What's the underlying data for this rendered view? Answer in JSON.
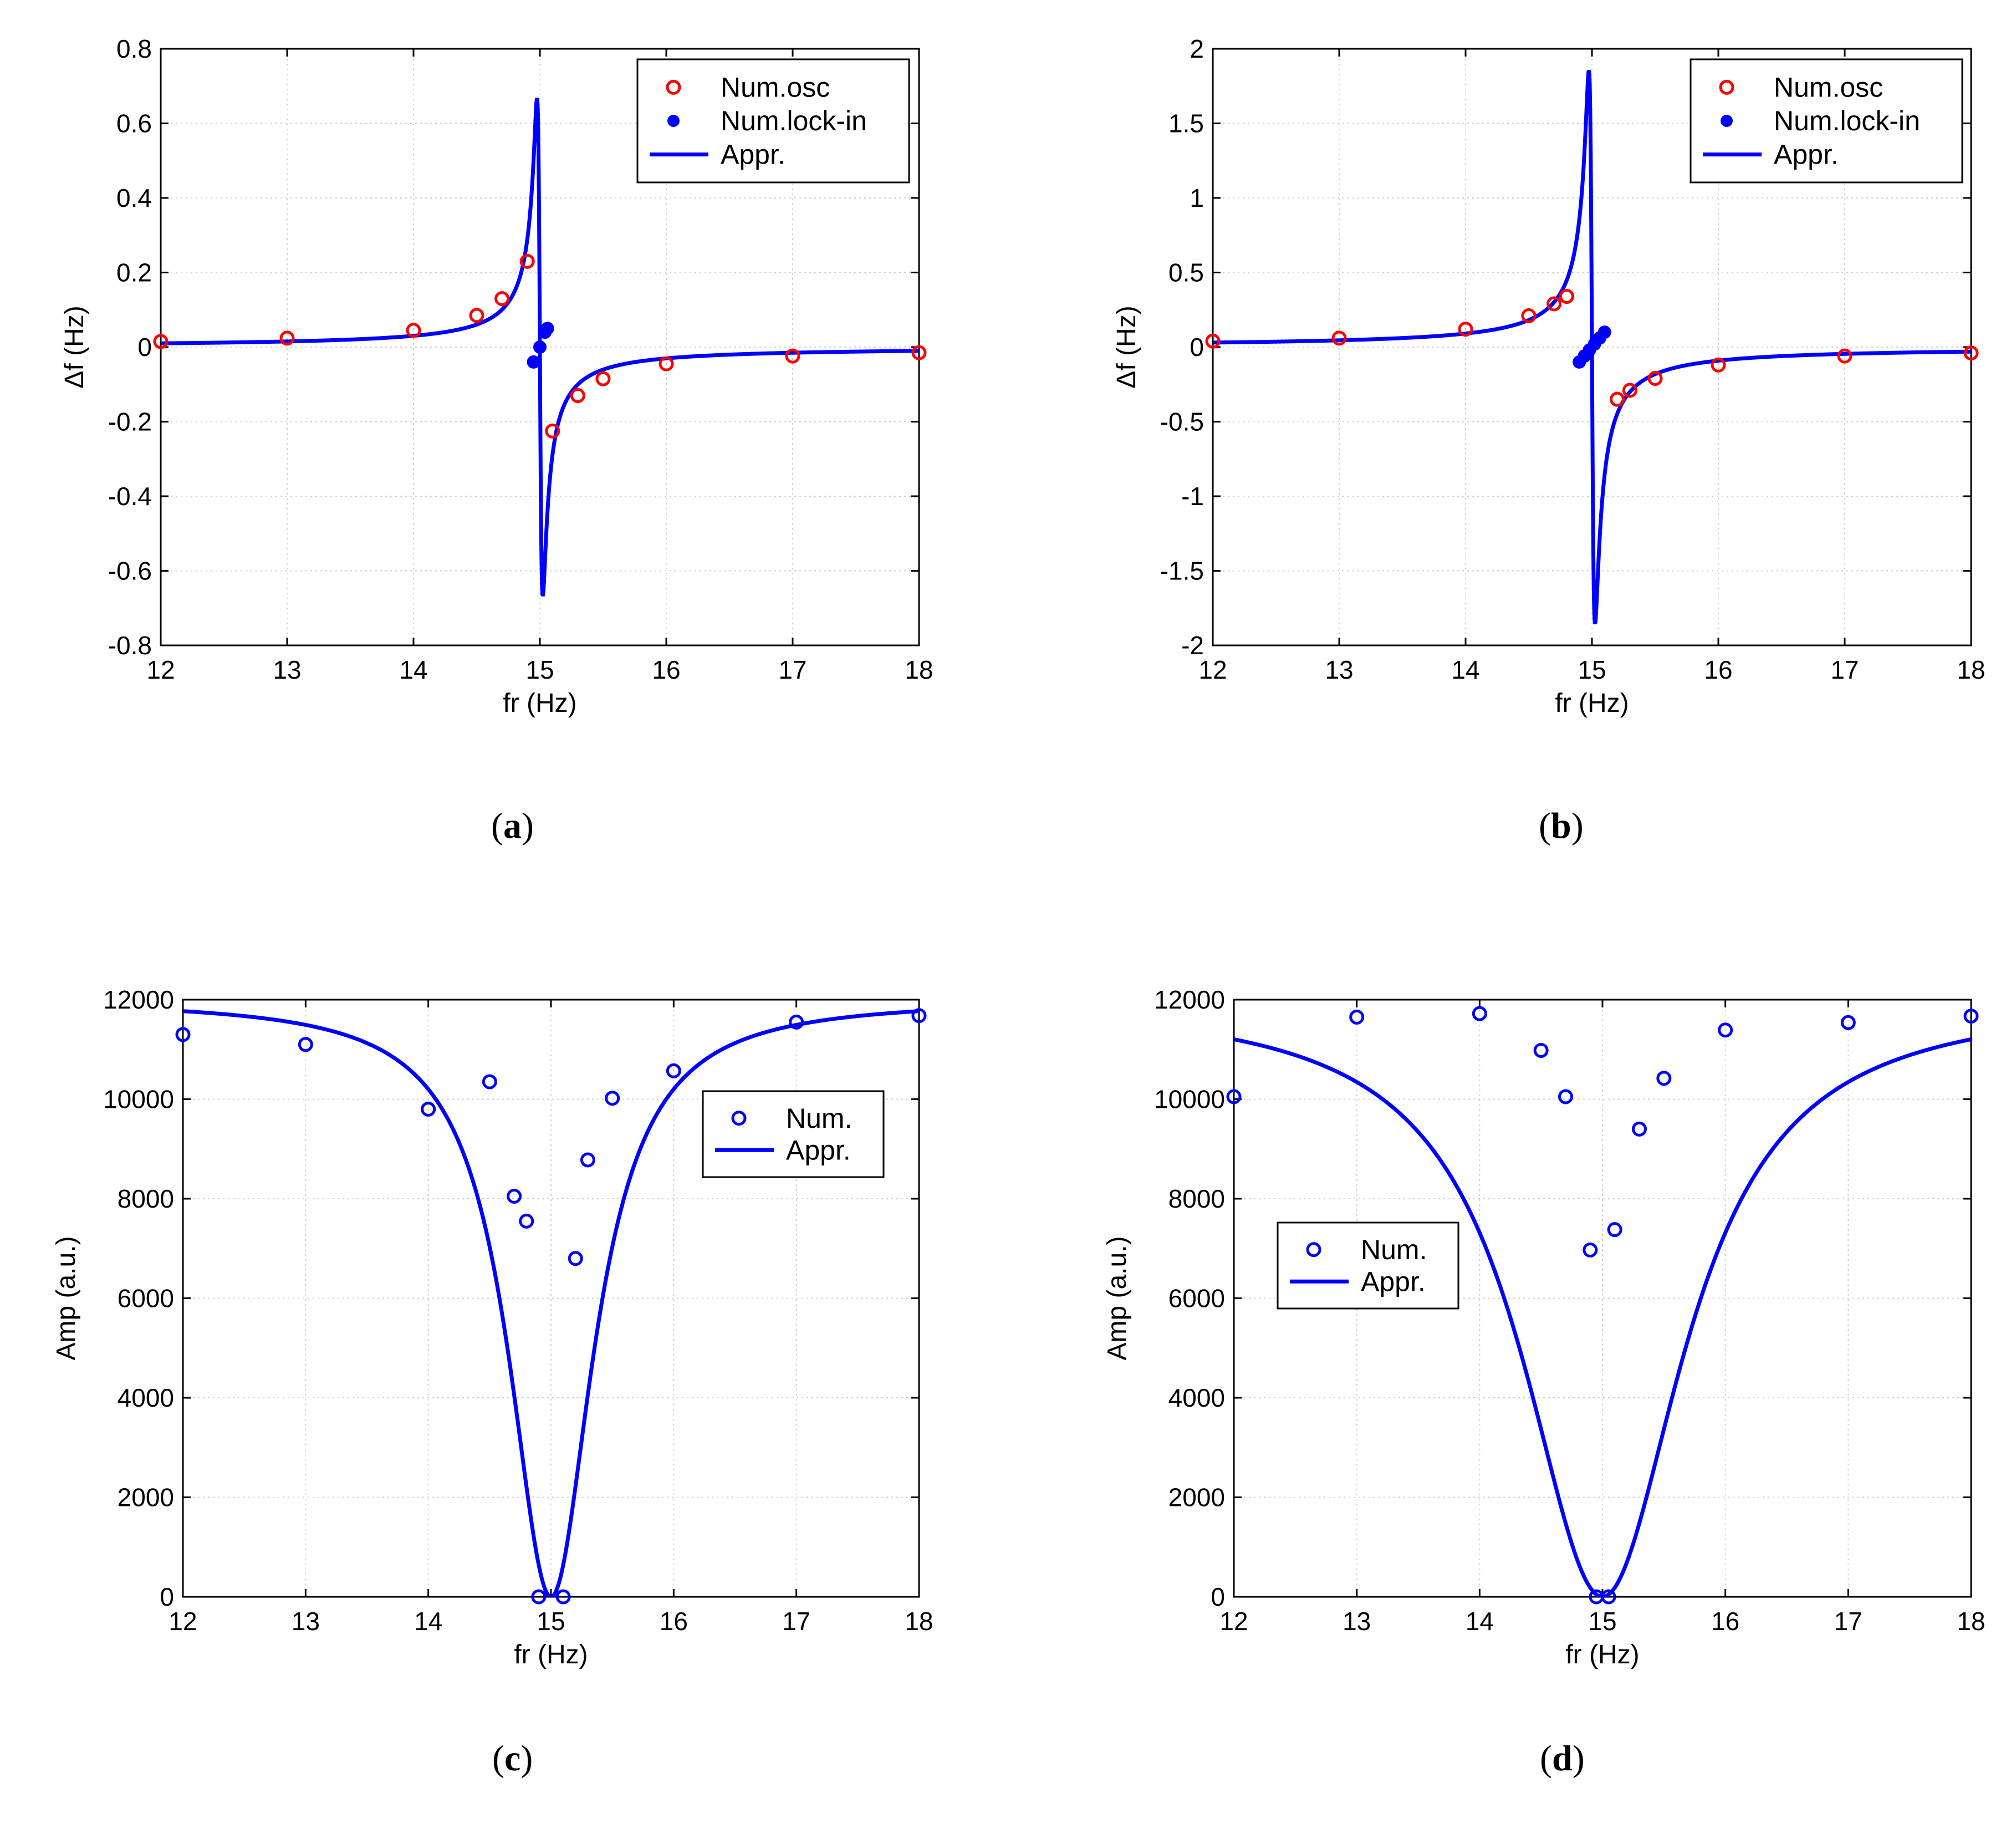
{
  "chart_data": [
    {
      "id": "a",
      "type": "scatter",
      "panel_label": "a",
      "xlabel": "fr (Hz)",
      "ylabel": "Δf (Hz)",
      "xlim": [
        12,
        18
      ],
      "ylim": [
        -0.8,
        0.8
      ],
      "xticks": [
        12,
        13,
        14,
        15,
        16,
        17,
        18
      ],
      "yticks": [
        -0.8,
        -0.6,
        -0.4,
        -0.2,
        0,
        0.2,
        0.4,
        0.6,
        0.8
      ],
      "ytick_labels": [
        "-0.8",
        "-0.6",
        "-0.4",
        "-0.2",
        "0",
        "0.2",
        "0.4",
        "0.6",
        "0.8"
      ],
      "grid": true,
      "legend_position": "top-right",
      "curve": {
        "type": "resonance",
        "f0": 15.0,
        "k": 0.0303,
        "gamma": 0.0227
      },
      "series": [
        {
          "name": "Num.osc",
          "kind": "open-circle",
          "color": "#ff0000",
          "x": [
            12,
            13,
            14,
            14.5,
            14.7,
            14.9,
            15.1,
            15.3,
            15.5,
            16,
            17,
            18
          ],
          "y": [
            0.015,
            0.024,
            0.045,
            0.085,
            0.13,
            0.23,
            -0.225,
            -0.13,
            -0.085,
            -0.045,
            -0.024,
            -0.015
          ]
        },
        {
          "name": "Num.lock-in",
          "kind": "filled-circle",
          "color": "#0000ff",
          "x": [
            14.95,
            15.0,
            15.04,
            15.06
          ],
          "y": [
            -0.04,
            0.0,
            0.04,
            0.05
          ]
        },
        {
          "name": "Appr.",
          "kind": "line",
          "color": "#0000ff"
        }
      ]
    },
    {
      "id": "b",
      "type": "scatter",
      "panel_label": "b",
      "xlabel": "fr (Hz)",
      "ylabel": "Δf (Hz)",
      "xlim": [
        12,
        18
      ],
      "ylim": [
        -2,
        2
      ],
      "xticks": [
        12,
        13,
        14,
        15,
        16,
        17,
        18
      ],
      "yticks": [
        -2,
        -1.5,
        -1,
        -0.5,
        0,
        0.5,
        1,
        1.5,
        2
      ],
      "ytick_labels": [
        "-2",
        "-1.5",
        "-1",
        "-0.5",
        "0",
        "0.5",
        "1",
        "1.5",
        "2"
      ],
      "grid": true,
      "legend_position": "top-right",
      "curve": {
        "type": "resonance",
        "f0": 15.0,
        "k": 0.0909,
        "gamma": 0.0245
      },
      "series": [
        {
          "name": "Num.osc",
          "kind": "open-circle",
          "color": "#ff0000",
          "x": [
            12,
            13,
            14,
            14.5,
            14.7,
            14.8,
            15.2,
            15.3,
            15.5,
            16,
            17,
            18
          ],
          "y": [
            0.04,
            0.06,
            0.12,
            0.21,
            0.29,
            0.34,
            -0.35,
            -0.29,
            -0.21,
            -0.12,
            -0.06,
            -0.04
          ]
        },
        {
          "name": "Num.lock-in",
          "kind": "filled-circle",
          "color": "#0000ff",
          "x": [
            14.9,
            14.94,
            14.98,
            15.02,
            15.06,
            15.1
          ],
          "y": [
            -0.1,
            -0.06,
            -0.02,
            0.02,
            0.06,
            0.1
          ]
        },
        {
          "name": "Appr.",
          "kind": "line",
          "color": "#0000ff"
        }
      ]
    },
    {
      "id": "c",
      "type": "scatter",
      "panel_label": "c",
      "xlabel": "fr (Hz)",
      "ylabel": "Amp (a.u.)",
      "xlim": [
        12,
        18
      ],
      "ylim": [
        0,
        12000
      ],
      "xticks": [
        12,
        13,
        14,
        15,
        16,
        17,
        18
      ],
      "yticks": [
        0,
        2000,
        4000,
        6000,
        8000,
        10000,
        12000
      ],
      "ytick_labels": [
        "0",
        "2000",
        "4000",
        "6000",
        "8000",
        "10000",
        "12000"
      ],
      "grid": true,
      "legend_position": "upper-right",
      "curve": {
        "type": "notch",
        "f0": 15.0,
        "amax": 12000,
        "w": 0.42
      },
      "series": [
        {
          "name": "Num.",
          "kind": "open-circle",
          "color": "#0000ff",
          "x": [
            12,
            13,
            14,
            14.5,
            14.7,
            14.8,
            14.9,
            15.1,
            15.2,
            15.3,
            15.5,
            16,
            17,
            18
          ],
          "y": [
            11300,
            11100,
            9800,
            10350,
            8050,
            7550,
            0,
            0,
            6800,
            8780,
            10020,
            10570,
            11550,
            11680
          ]
        },
        {
          "name": "Appr.",
          "kind": "line",
          "color": "#0000ff"
        }
      ]
    },
    {
      "id": "d",
      "type": "scatter",
      "panel_label": "d",
      "xlabel": "fr (Hz)",
      "ylabel": "Amp (a.u.)",
      "xlim": [
        12,
        18
      ],
      "ylim": [
        0,
        12000
      ],
      "xticks": [
        12,
        13,
        14,
        15,
        16,
        17,
        18
      ],
      "yticks": [
        0,
        2000,
        4000,
        6000,
        8000,
        10000,
        12000
      ],
      "ytick_labels": [
        "0",
        "2000",
        "4000",
        "6000",
        "8000",
        "10000",
        "12000"
      ],
      "grid": true,
      "legend_position": "middle-left",
      "curve": {
        "type": "notch",
        "f0": 15.0,
        "amax": 12000,
        "w": 0.8
      },
      "series": [
        {
          "name": "Num.",
          "kind": "open-circle",
          "color": "#0000ff",
          "x": [
            12,
            13,
            14,
            14.5,
            14.7,
            14.9,
            14.95,
            15.05,
            15.1,
            15.3,
            15.5,
            16,
            17,
            18
          ],
          "y": [
            10050,
            11650,
            11720,
            10980,
            10050,
            6970,
            0,
            0,
            7380,
            9400,
            10420,
            11390,
            11540,
            11670
          ]
        },
        {
          "name": "Appr.",
          "kind": "line",
          "color": "#0000ff"
        }
      ]
    }
  ]
}
